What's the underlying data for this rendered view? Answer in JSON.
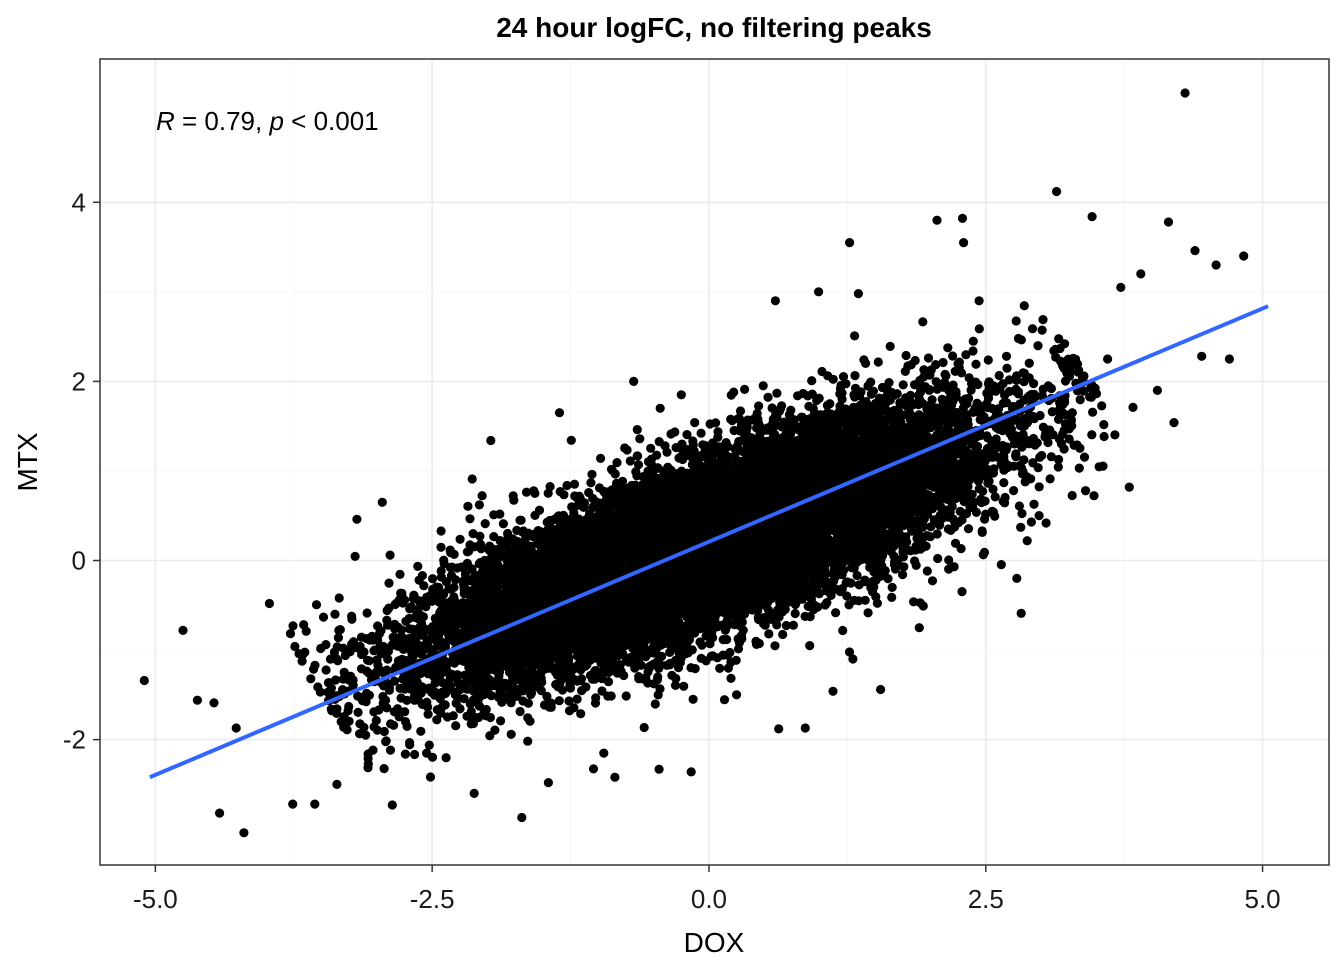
{
  "chart_data": {
    "type": "scatter",
    "title": "24 hour logFC, no filtering peaks",
    "xlabel": "DOX",
    "ylabel": "MTX",
    "xlim": [
      -5.5,
      5.6
    ],
    "ylim": [
      -3.4,
      5.6
    ],
    "x_ticks": [
      -5.0,
      -2.5,
      0.0,
      2.5,
      5.0
    ],
    "x_tick_labels": [
      "-5.0",
      "-2.5",
      "0.0",
      "2.5",
      "5.0"
    ],
    "y_ticks": [
      -2,
      0,
      2,
      4
    ],
    "y_tick_labels": [
      "-2",
      "0",
      "2",
      "4"
    ],
    "grid": true,
    "annotation": {
      "r_symbol": "R",
      "r_text": " = 0.79, ",
      "p_symbol": "p",
      "p_text": " < 0.001"
    },
    "fit_line": {
      "color": "#3366FF",
      "x": [
        -5.05,
        5.05
      ],
      "y": [
        -2.42,
        2.84
      ]
    },
    "point_color": "#000000",
    "points": [
      [
        4.3,
        5.22
      ],
      [
        3.14,
        4.12
      ],
      [
        4.83,
        3.4
      ],
      [
        4.15,
        3.78
      ],
      [
        2.29,
        3.82
      ],
      [
        2.06,
        3.8
      ],
      [
        1.27,
        3.55
      ],
      [
        3.46,
        3.84
      ],
      [
        -5.1,
        -1.34
      ],
      [
        -4.75,
        -0.78
      ],
      [
        -4.2,
        -3.04
      ],
      [
        -4.42,
        -2.82
      ],
      [
        -3.76,
        -2.72
      ],
      [
        -3.56,
        -2.72
      ],
      [
        -2.86,
        -2.73
      ],
      [
        -1.69,
        -2.87
      ],
      [
        -0.85,
        -2.42
      ],
      [
        -0.45,
        -2.33
      ],
      [
        0.63,
        -1.88
      ],
      [
        0.87,
        -1.87
      ],
      [
        2.82,
        -0.59
      ],
      [
        1.12,
        -1.46
      ],
      [
        1.55,
        -1.44
      ],
      [
        3.6,
        2.25
      ],
      [
        4.2,
        1.54
      ],
      [
        4.45,
        2.28
      ],
      [
        4.7,
        2.25
      ],
      [
        3.83,
        1.71
      ],
      [
        4.05,
        1.9
      ],
      [
        2.44,
        2.9
      ],
      [
        1.35,
        2.98
      ],
      [
        0.99,
        3.0
      ],
      [
        -0.68,
        2.0
      ],
      [
        -0.44,
        1.7
      ],
      [
        -1.97,
        1.34
      ],
      [
        -2.95,
        0.65
      ],
      [
        -3.18,
        0.46
      ],
      [
        -3.97,
        -0.48
      ],
      [
        -4.47,
        -1.59
      ],
      [
        -4.62,
        -1.56
      ],
      [
        -4.27,
        -1.87
      ],
      [
        -3.36,
        -2.5
      ],
      [
        -2.12,
        -2.6
      ],
      [
        -1.45,
        -2.48
      ],
      [
        -0.16,
        -2.36
      ],
      [
        3.9,
        3.2
      ],
      [
        4.58,
        3.3
      ],
      [
        3.72,
        3.05
      ],
      [
        2.3,
        3.55
      ],
      [
        4.39,
        3.46
      ],
      [
        0.6,
        2.9
      ],
      [
        -1.35,
        1.65
      ],
      [
        -0.25,
        1.85
      ],
      [
        2.78,
        -0.2
      ],
      [
        1.9,
        -0.75
      ],
      [
        1.3,
        -1.1
      ],
      [
        0.25,
        -1.5
      ],
      [
        -0.95,
        -2.15
      ],
      [
        -2.55,
        -2.15
      ],
      [
        -3.1,
        -1.95
      ]
    ],
    "blob": {
      "center": [
        0.0,
        0.2
      ],
      "slope": 0.52,
      "major_sd": 1.35,
      "minor_sd": 0.42,
      "count": 15000
    }
  }
}
